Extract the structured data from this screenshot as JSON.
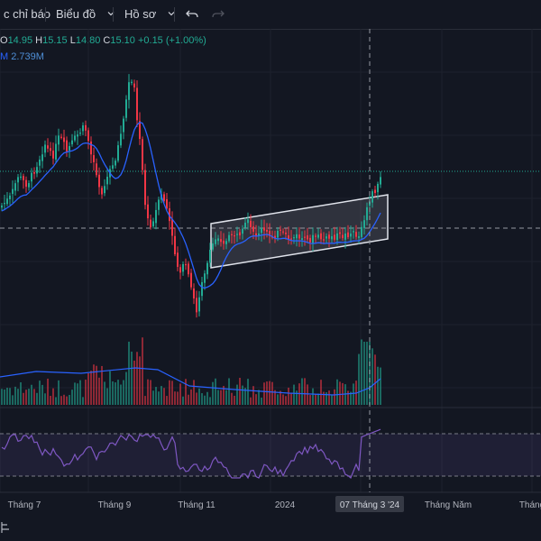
{
  "toolbar": {
    "indicators_label": "c chỉ báo",
    "chart_label": "Biểu đồ",
    "profile_label": "Hồ sơ"
  },
  "legend": {
    "o_key": "O",
    "o_val": "14.95",
    "h_key": "H",
    "h_val": "15.15",
    "l_key": "L",
    "l_val": "14.80",
    "c_key": "C",
    "c_val": "15.10",
    "change": "+0.15 (+1.00%)",
    "vol_key": "M",
    "vol_val": "2.739M"
  },
  "time_axis": {
    "labels": [
      "Tháng 7",
      "Tháng 9",
      "Tháng 11",
      "2024",
      "Tháng Năm",
      "Tháng"
    ],
    "crosshair_label": "07 Tháng 3 '24"
  },
  "colors": {
    "up": "#22ab94",
    "down": "#f23645",
    "ma": "#2962ff",
    "rsi": "#7e57c2",
    "channel": "#e0e3eb",
    "background": "#131722"
  },
  "chart_data": {
    "type": "candlestick",
    "last_close": 15.1,
    "open": 14.95,
    "high": 15.15,
    "low": 14.8,
    "close": 15.1,
    "change": 0.15,
    "change_pct": 1.0,
    "volume": "2.739M",
    "indicators": [
      "Volume",
      "Moving average",
      "RSI",
      "Parallel channel"
    ]
  }
}
